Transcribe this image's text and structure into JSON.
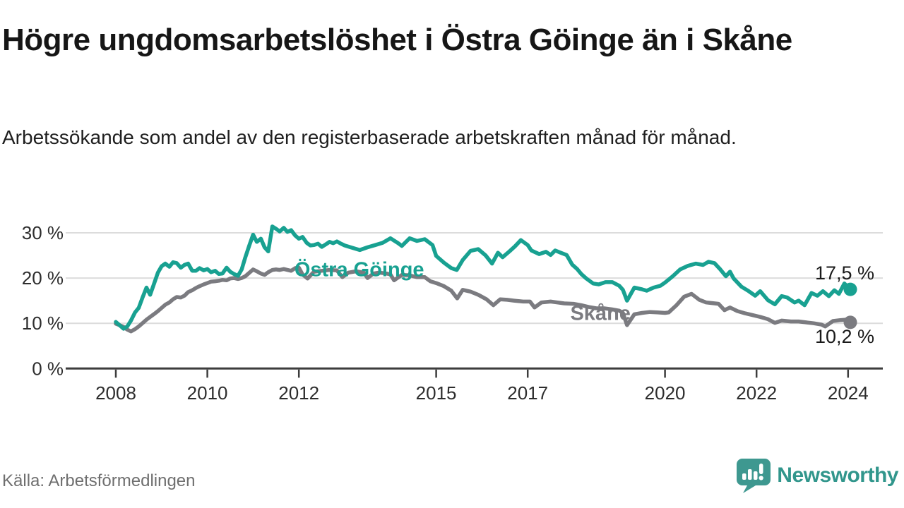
{
  "header": {
    "title": "Högre ungdomsarbetslöshet i Östra Göinge än i Skåne",
    "subtitle": "Arbetssökande som andel av den registerbaserade arbetskraften månad för månad."
  },
  "footer": {
    "source": "Källa: Arbetsförmedlingen",
    "brand_name": "Newsworthy",
    "brand_color": "#31968c",
    "brand_icon": "newsworthy-speech-bubble-bar-chart-icon"
  },
  "chart_data": {
    "type": "line",
    "title": "Högre ungdomsarbetslöshet i Östra Göinge än i Skåne",
    "ylabel": "",
    "xlabel": "",
    "grid": "horizontal",
    "legend_position": "inline-labels",
    "x_range": [
      2008,
      2024.4
    ],
    "y_range": [
      0,
      32
    ],
    "x_axis": {
      "values": [
        2008,
        2010,
        2012,
        2015,
        2017,
        2020,
        2022,
        2024
      ],
      "labels": [
        "2008",
        "2010",
        "2012",
        "2015",
        "2017",
        "2020",
        "2022",
        "2024"
      ]
    },
    "y_axis": {
      "values": [
        0,
        10,
        20,
        30
      ],
      "labels": [
        "0 %",
        "10 %",
        "20 %",
        "30 %"
      ]
    },
    "colors": {
      "grid": "#dcdcdc",
      "axis": "#3d3d3d",
      "tick_text": "#2d2d2d"
    },
    "annotations": [
      {
        "text": "Östra Göinge",
        "x": 2013.32,
        "y": 22.0,
        "color": "#18a191"
      },
      {
        "text": "Skåne",
        "x": 2018.59,
        "y": 12.3,
        "color": "#7b7b80"
      }
    ],
    "series": [
      {
        "name": "Skåne",
        "color": "#7b7b80",
        "end_label": "10,2 %",
        "end_value": 10.2,
        "points": [
          [
            2008.0,
            9.9
          ],
          [
            2008.08,
            9.6
          ],
          [
            2008.17,
            9.2
          ],
          [
            2008.25,
            8.6
          ],
          [
            2008.33,
            8.2
          ],
          [
            2008.42,
            8.7
          ],
          [
            2008.5,
            9.3
          ],
          [
            2008.58,
            10.0
          ],
          [
            2008.67,
            10.8
          ],
          [
            2008.75,
            11.4
          ],
          [
            2008.83,
            12.0
          ],
          [
            2008.92,
            12.7
          ],
          [
            2009.0,
            13.4
          ],
          [
            2009.08,
            14.1
          ],
          [
            2009.17,
            14.6
          ],
          [
            2009.25,
            15.3
          ],
          [
            2009.33,
            15.8
          ],
          [
            2009.42,
            15.7
          ],
          [
            2009.5,
            16.1
          ],
          [
            2009.58,
            16.9
          ],
          [
            2009.67,
            17.3
          ],
          [
            2009.75,
            17.8
          ],
          [
            2009.83,
            18.2
          ],
          [
            2009.92,
            18.6
          ],
          [
            2010.0,
            18.9
          ],
          [
            2010.08,
            19.2
          ],
          [
            2010.17,
            19.3
          ],
          [
            2010.25,
            19.4
          ],
          [
            2010.33,
            19.6
          ],
          [
            2010.42,
            19.5
          ],
          [
            2010.5,
            19.9
          ],
          [
            2010.58,
            20.0
          ],
          [
            2010.67,
            19.8
          ],
          [
            2010.75,
            20.0
          ],
          [
            2010.83,
            20.4
          ],
          [
            2010.92,
            21.2
          ],
          [
            2011.0,
            21.9
          ],
          [
            2011.08,
            21.5
          ],
          [
            2011.17,
            21.0
          ],
          [
            2011.25,
            20.7
          ],
          [
            2011.33,
            21.3
          ],
          [
            2011.42,
            21.8
          ],
          [
            2011.5,
            21.9
          ],
          [
            2011.58,
            21.8
          ],
          [
            2011.67,
            22.0
          ],
          [
            2011.75,
            21.8
          ],
          [
            2011.83,
            21.6
          ],
          [
            2011.92,
            22.2
          ],
          [
            2012.0,
            22.3
          ],
          [
            2012.08,
            20.8
          ],
          [
            2012.19,
            19.9
          ],
          [
            2012.33,
            21.4
          ],
          [
            2012.5,
            21.6
          ],
          [
            2012.67,
            21.8
          ],
          [
            2012.83,
            21.7
          ],
          [
            2012.95,
            20.2
          ],
          [
            2013.08,
            21.2
          ],
          [
            2013.25,
            21.5
          ],
          [
            2013.42,
            21.2
          ],
          [
            2013.5,
            20.0
          ],
          [
            2013.63,
            21.0
          ],
          [
            2013.75,
            21.2
          ],
          [
            2013.92,
            21.0
          ],
          [
            2014.0,
            20.8
          ],
          [
            2014.08,
            19.5
          ],
          [
            2014.25,
            20.7
          ],
          [
            2014.42,
            20.6
          ],
          [
            2014.58,
            20.2
          ],
          [
            2014.75,
            20.2
          ],
          [
            2014.87,
            19.3
          ],
          [
            2015.0,
            18.9
          ],
          [
            2015.17,
            18.2
          ],
          [
            2015.33,
            17.2
          ],
          [
            2015.46,
            15.5
          ],
          [
            2015.58,
            17.4
          ],
          [
            2015.75,
            17.0
          ],
          [
            2015.92,
            16.3
          ],
          [
            2016.1,
            15.3
          ],
          [
            2016.25,
            14.0
          ],
          [
            2016.4,
            15.3
          ],
          [
            2016.55,
            15.2
          ],
          [
            2016.7,
            15.0
          ],
          [
            2016.9,
            14.8
          ],
          [
            2017.05,
            14.8
          ],
          [
            2017.15,
            13.5
          ],
          [
            2017.3,
            14.6
          ],
          [
            2017.5,
            14.8
          ],
          [
            2017.65,
            14.6
          ],
          [
            2017.8,
            14.4
          ],
          [
            2018.0,
            14.3
          ],
          [
            2018.17,
            14.0
          ],
          [
            2018.33,
            13.6
          ],
          [
            2018.5,
            13.3
          ],
          [
            2018.67,
            13.3
          ],
          [
            2018.83,
            13.1
          ],
          [
            2019.0,
            12.8
          ],
          [
            2019.08,
            12.3
          ],
          [
            2019.17,
            9.6
          ],
          [
            2019.33,
            12.0
          ],
          [
            2019.5,
            12.3
          ],
          [
            2019.67,
            12.5
          ],
          [
            2019.83,
            12.4
          ],
          [
            2020.0,
            12.3
          ],
          [
            2020.08,
            12.4
          ],
          [
            2020.25,
            14.0
          ],
          [
            2020.42,
            15.9
          ],
          [
            2020.58,
            16.5
          ],
          [
            2020.75,
            15.2
          ],
          [
            2020.9,
            14.6
          ],
          [
            2021.0,
            14.5
          ],
          [
            2021.17,
            14.3
          ],
          [
            2021.3,
            12.9
          ],
          [
            2021.42,
            13.5
          ],
          [
            2021.58,
            12.7
          ],
          [
            2021.75,
            12.2
          ],
          [
            2021.92,
            11.8
          ],
          [
            2022.08,
            11.4
          ],
          [
            2022.25,
            10.9
          ],
          [
            2022.4,
            10.1
          ],
          [
            2022.55,
            10.6
          ],
          [
            2022.75,
            10.4
          ],
          [
            2022.92,
            10.4
          ],
          [
            2023.08,
            10.2
          ],
          [
            2023.25,
            10.0
          ],
          [
            2023.42,
            9.7
          ],
          [
            2023.5,
            9.3
          ],
          [
            2023.67,
            10.5
          ],
          [
            2023.83,
            10.7
          ],
          [
            2023.95,
            10.8
          ],
          [
            2024.05,
            10.2
          ]
        ]
      },
      {
        "name": "Östra Göinge",
        "color": "#18a191",
        "end_label": "17,5 %",
        "end_value": 17.5,
        "points": [
          [
            2008.0,
            10.3
          ],
          [
            2008.08,
            9.6
          ],
          [
            2008.17,
            8.8
          ],
          [
            2008.25,
            9.3
          ],
          [
            2008.33,
            10.6
          ],
          [
            2008.42,
            12.4
          ],
          [
            2008.5,
            13.4
          ],
          [
            2008.58,
            15.6
          ],
          [
            2008.67,
            17.9
          ],
          [
            2008.75,
            16.3
          ],
          [
            2008.83,
            18.6
          ],
          [
            2008.92,
            21.2
          ],
          [
            2009.0,
            22.6
          ],
          [
            2009.08,
            23.2
          ],
          [
            2009.17,
            22.5
          ],
          [
            2009.25,
            23.5
          ],
          [
            2009.33,
            23.3
          ],
          [
            2009.42,
            22.3
          ],
          [
            2009.5,
            22.9
          ],
          [
            2009.58,
            23.2
          ],
          [
            2009.67,
            21.6
          ],
          [
            2009.75,
            21.6
          ],
          [
            2009.83,
            22.2
          ],
          [
            2009.92,
            21.7
          ],
          [
            2010.0,
            22.0
          ],
          [
            2010.08,
            21.3
          ],
          [
            2010.17,
            21.6
          ],
          [
            2010.25,
            20.9
          ],
          [
            2010.33,
            21.0
          ],
          [
            2010.42,
            22.3
          ],
          [
            2010.5,
            21.4
          ],
          [
            2010.58,
            20.9
          ],
          [
            2010.67,
            20.5
          ],
          [
            2010.75,
            21.9
          ],
          [
            2010.83,
            24.6
          ],
          [
            2010.92,
            27.3
          ],
          [
            2011.0,
            29.6
          ],
          [
            2011.08,
            28.0
          ],
          [
            2011.17,
            28.7
          ],
          [
            2011.25,
            26.8
          ],
          [
            2011.33,
            25.9
          ],
          [
            2011.42,
            31.4
          ],
          [
            2011.5,
            30.9
          ],
          [
            2011.58,
            30.3
          ],
          [
            2011.67,
            31.1
          ],
          [
            2011.75,
            30.2
          ],
          [
            2011.83,
            30.6
          ],
          [
            2011.92,
            29.4
          ],
          [
            2012.0,
            28.7
          ],
          [
            2012.08,
            29.1
          ],
          [
            2012.17,
            27.8
          ],
          [
            2012.25,
            27.2
          ],
          [
            2012.33,
            27.3
          ],
          [
            2012.42,
            27.6
          ],
          [
            2012.5,
            26.9
          ],
          [
            2012.58,
            27.4
          ],
          [
            2012.67,
            28.0
          ],
          [
            2012.75,
            27.7
          ],
          [
            2012.83,
            28.1
          ],
          [
            2012.92,
            27.6
          ],
          [
            2013.0,
            27.2
          ],
          [
            2013.17,
            26.7
          ],
          [
            2013.33,
            26.2
          ],
          [
            2013.5,
            26.8
          ],
          [
            2013.67,
            27.3
          ],
          [
            2013.83,
            27.8
          ],
          [
            2014.0,
            28.8
          ],
          [
            2014.17,
            27.7
          ],
          [
            2014.25,
            27.1
          ],
          [
            2014.42,
            28.8
          ],
          [
            2014.58,
            28.2
          ],
          [
            2014.75,
            28.6
          ],
          [
            2014.92,
            27.3
          ],
          [
            2015.0,
            24.9
          ],
          [
            2015.17,
            23.4
          ],
          [
            2015.33,
            22.2
          ],
          [
            2015.45,
            21.8
          ],
          [
            2015.58,
            24.0
          ],
          [
            2015.75,
            26.0
          ],
          [
            2015.92,
            26.4
          ],
          [
            2016.08,
            25.0
          ],
          [
            2016.22,
            23.2
          ],
          [
            2016.35,
            25.6
          ],
          [
            2016.45,
            24.6
          ],
          [
            2016.6,
            25.9
          ],
          [
            2016.72,
            27.0
          ],
          [
            2016.85,
            28.4
          ],
          [
            2017.0,
            27.3
          ],
          [
            2017.08,
            26.1
          ],
          [
            2017.25,
            25.3
          ],
          [
            2017.4,
            25.8
          ],
          [
            2017.5,
            25.1
          ],
          [
            2017.6,
            26.1
          ],
          [
            2017.72,
            25.6
          ],
          [
            2017.85,
            25.1
          ],
          [
            2017.97,
            23.0
          ],
          [
            2018.08,
            22.0
          ],
          [
            2018.17,
            20.9
          ],
          [
            2018.28,
            19.9
          ],
          [
            2018.43,
            18.8
          ],
          [
            2018.55,
            18.6
          ],
          [
            2018.7,
            19.1
          ],
          [
            2018.85,
            19.1
          ],
          [
            2019.0,
            18.3
          ],
          [
            2019.08,
            17.4
          ],
          [
            2019.17,
            15.0
          ],
          [
            2019.33,
            17.9
          ],
          [
            2019.5,
            17.5
          ],
          [
            2019.6,
            17.2
          ],
          [
            2019.75,
            17.9
          ],
          [
            2019.9,
            18.3
          ],
          [
            2020.0,
            19.0
          ],
          [
            2020.17,
            20.4
          ],
          [
            2020.33,
            21.9
          ],
          [
            2020.5,
            22.7
          ],
          [
            2020.67,
            23.2
          ],
          [
            2020.83,
            22.9
          ],
          [
            2020.95,
            23.6
          ],
          [
            2021.08,
            23.3
          ],
          [
            2021.2,
            22.0
          ],
          [
            2021.33,
            20.4
          ],
          [
            2021.42,
            21.4
          ],
          [
            2021.5,
            19.9
          ],
          [
            2021.67,
            18.1
          ],
          [
            2021.83,
            17.1
          ],
          [
            2021.97,
            16.1
          ],
          [
            2022.08,
            17.1
          ],
          [
            2022.25,
            15.1
          ],
          [
            2022.4,
            14.2
          ],
          [
            2022.55,
            16.0
          ],
          [
            2022.67,
            15.7
          ],
          [
            2022.83,
            14.6
          ],
          [
            2022.92,
            15.0
          ],
          [
            2023.05,
            14.0
          ],
          [
            2023.2,
            16.7
          ],
          [
            2023.33,
            16.1
          ],
          [
            2023.45,
            17.1
          ],
          [
            2023.58,
            16.0
          ],
          [
            2023.7,
            17.3
          ],
          [
            2023.8,
            16.5
          ],
          [
            2023.92,
            18.8
          ],
          [
            2024.05,
            17.5
          ]
        ]
      }
    ]
  }
}
